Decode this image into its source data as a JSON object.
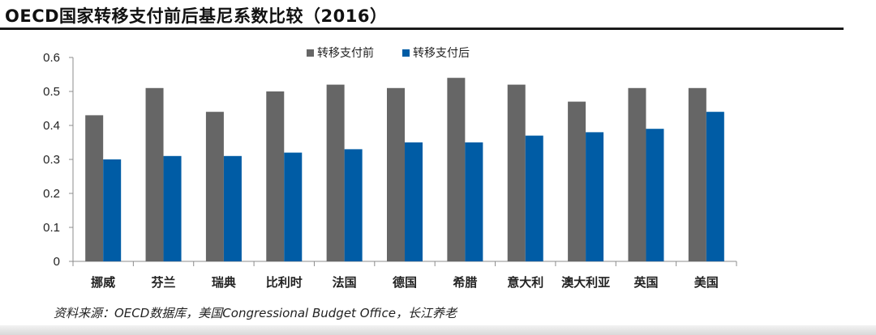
{
  "header": {
    "title": "OECD国家转移支付前后基尼系数比较（2016）"
  },
  "chart_data": {
    "type": "bar",
    "title": "OECD国家转移支付前后基尼系数比较（2016）",
    "categories": [
      "挪威",
      "芬兰",
      "瑞典",
      "比利时",
      "法国",
      "德国",
      "希腊",
      "意大利",
      "澳大利亚",
      "英国",
      "美国"
    ],
    "series": [
      {
        "name": "转移支付前",
        "color": "#666666",
        "values": [
          0.43,
          0.51,
          0.44,
          0.5,
          0.52,
          0.51,
          0.54,
          0.52,
          0.47,
          0.51,
          0.51
        ]
      },
      {
        "name": "转移支付后",
        "color": "#005CA5",
        "values": [
          0.3,
          0.31,
          0.31,
          0.32,
          0.33,
          0.35,
          0.35,
          0.37,
          0.38,
          0.39,
          0.44
        ]
      }
    ],
    "ylim": [
      0,
      0.6
    ],
    "yticks": [
      "0",
      "0.1",
      "0.2",
      "0.3",
      "0.4",
      "0.5",
      "0.6"
    ],
    "xlabel": "",
    "ylabel": "",
    "legend_position": "top-center",
    "grid": false
  },
  "footer": {
    "source": "资料来源：OECD数据库，美国Congressional Budget Office，长江养老"
  }
}
